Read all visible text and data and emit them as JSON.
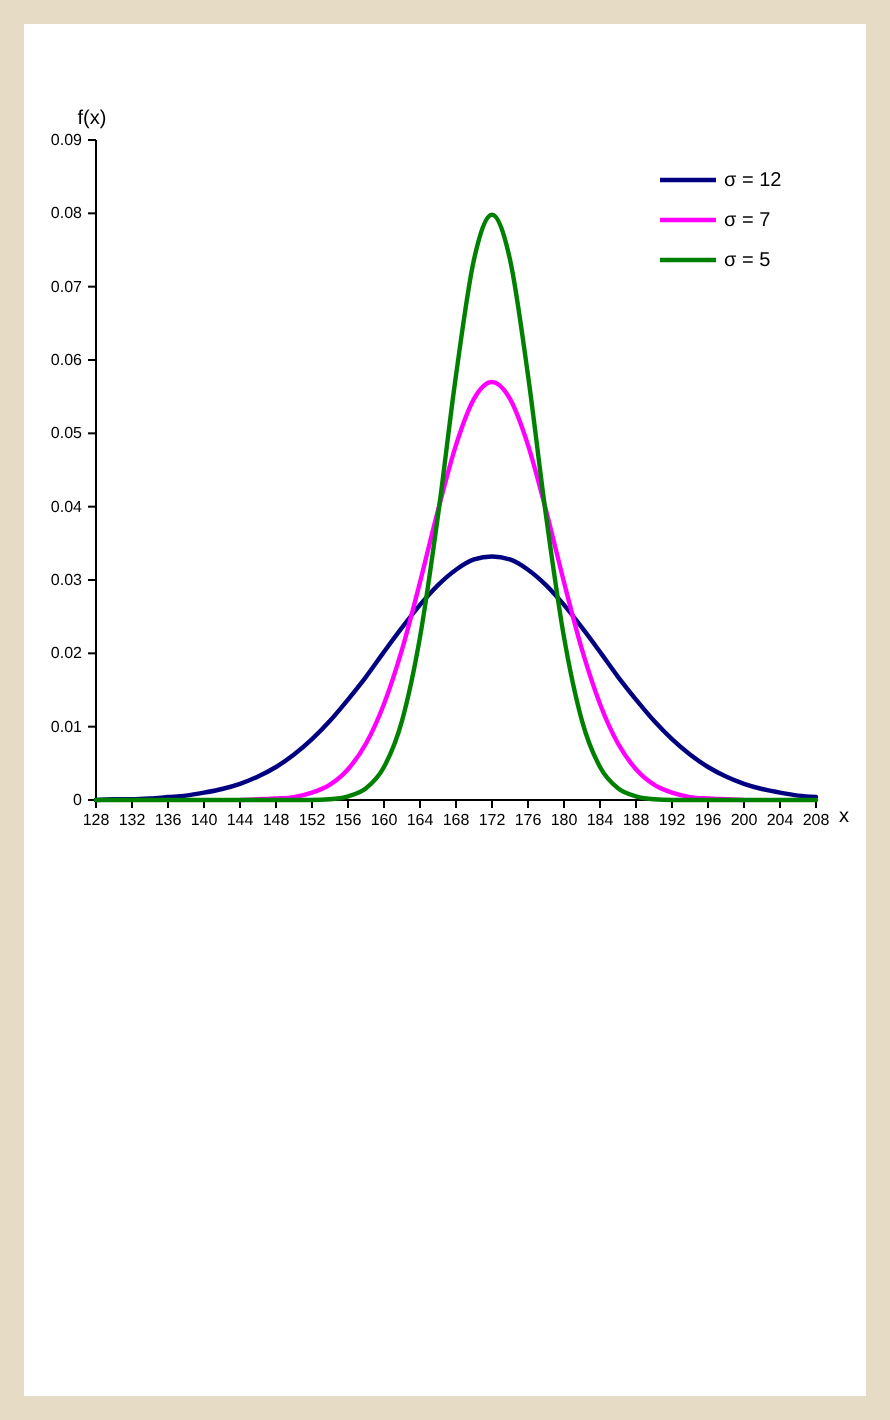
{
  "chart_data": {
    "type": "line",
    "xlabel": "x",
    "ylabel": "f(x)",
    "x": [
      128,
      130,
      132,
      134,
      136,
      138,
      140,
      142,
      144,
      146,
      148,
      150,
      152,
      154,
      156,
      158,
      160,
      162,
      164,
      166,
      168,
      170,
      172,
      174,
      176,
      178,
      180,
      182,
      184,
      186,
      188,
      190,
      192,
      194,
      196,
      198,
      200,
      202,
      204,
      206,
      208
    ],
    "series": [
      {
        "name": "σ = 12",
        "color": "#000080",
        "values": [
          0,
          0.0001,
          0.0001,
          0.0002,
          0.0004,
          0.0006,
          0.001,
          0.0015,
          0.0022,
          0.0032,
          0.0045,
          0.0062,
          0.0083,
          0.0108,
          0.0137,
          0.0168,
          0.0202,
          0.0235,
          0.0266,
          0.0293,
          0.0314,
          0.0328,
          0.0332,
          0.0328,
          0.0314,
          0.0293,
          0.0266,
          0.0235,
          0.0202,
          0.0168,
          0.0137,
          0.0108,
          0.0083,
          0.0062,
          0.0045,
          0.0032,
          0.0022,
          0.0015,
          0.001,
          0.0006,
          0.0004
        ]
      },
      {
        "name": "σ = 7",
        "color": "#ff00ff",
        "values": [
          null,
          null,
          null,
          null,
          null,
          null,
          null,
          null,
          0,
          0.0001,
          0.0002,
          0.0004,
          0.001,
          0.0021,
          0.0042,
          0.0077,
          0.0131,
          0.0205,
          0.0297,
          0.0395,
          0.0484,
          0.0547,
          0.057,
          0.0547,
          0.0484,
          0.0395,
          0.0297,
          0.0205,
          0.0131,
          0.0077,
          0.0042,
          0.0021,
          0.001,
          0.0004,
          0.0002,
          0.0001,
          0,
          null,
          null,
          null,
          null
        ]
      },
      {
        "name": "σ = 5",
        "color": "#008000",
        "values": [
          0,
          0,
          0,
          0,
          0,
          0,
          0,
          0,
          0,
          0,
          0,
          0,
          0,
          0.0001,
          0.0005,
          0.0016,
          0.0045,
          0.0108,
          0.0222,
          0.0388,
          0.0579,
          0.0737,
          0.0798,
          0.0737,
          0.0579,
          0.0388,
          0.0222,
          0.0108,
          0.0045,
          0.0016,
          0.0005,
          0.0001,
          0,
          0,
          0,
          0,
          0,
          0,
          0,
          0,
          0
        ]
      }
    ],
    "xlim": [
      128,
      208
    ],
    "xticks": [
      128,
      132,
      136,
      140,
      144,
      148,
      152,
      156,
      160,
      164,
      168,
      172,
      176,
      180,
      184,
      188,
      192,
      196,
      200,
      204,
      208
    ],
    "ylim": [
      0,
      0.09
    ],
    "yticks": [
      0,
      0.01,
      0.02,
      0.03,
      0.04,
      0.05,
      0.06,
      0.07,
      0.08,
      0.09
    ],
    "grid": false,
    "legend": "top right",
    "marker": "none",
    "line_style": "solid"
  }
}
